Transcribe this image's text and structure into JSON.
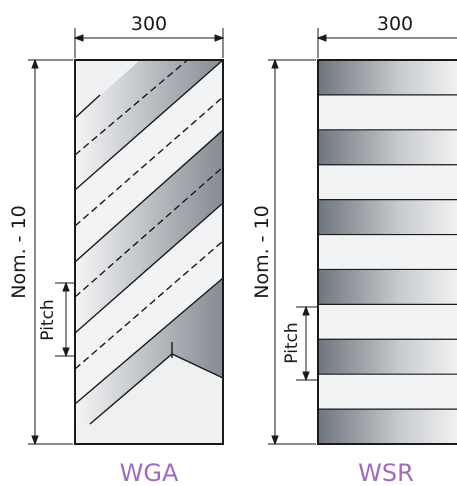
{
  "left_panel": {
    "width_label": "300",
    "height_label": "Nom. - 10",
    "pitch_label": "Pitch",
    "caption": "WGA"
  },
  "right_panel": {
    "width_label": "300",
    "height_label": "Nom. - 10",
    "pitch_label": "Pitch",
    "caption": "WSR"
  },
  "colors": {
    "outline": "#1a1a1a",
    "caption": "#a06bc0",
    "band_dark": "#7a8088",
    "band_light": "#f2f3f4"
  }
}
